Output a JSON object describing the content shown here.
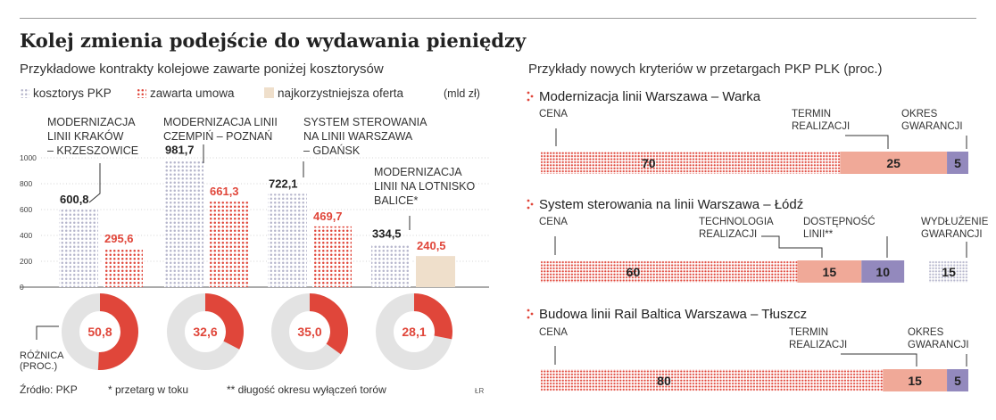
{
  "title": "Kolej zmienia podejście do wydawania pieniędzy",
  "left_subtitle": "Przykładowe kontrakty kolejowe zawarte poniżej kosztorysów",
  "right_subtitle": "Przykłady nowych kryteriów w przetargach PKP PLK (proc.)",
  "unit": "(mld zł)",
  "source": "Źródło: PKP",
  "footnote1": "* przetarg w toku",
  "footnote2": "** długość okresu wyłączeń torów",
  "credit": "ŁR",
  "diff_label": [
    "RÓŻNICA",
    "(PROC.)"
  ],
  "colors": {
    "pkp": "#b6b6cc",
    "contract": "#e0463a",
    "best": "#efdfcb",
    "red": "#e0463a",
    "salmon": "#f0a998",
    "purple": "#9389bd",
    "donut_bg": "#e3e3e3"
  },
  "chart_data": [
    {
      "type": "bar",
      "legend": [
        {
          "key": "pkp",
          "name": "kosztorys PKP"
        },
        {
          "key": "contract",
          "name": "zawarta umowa"
        },
        {
          "key": "best",
          "name": "najkorzystniejsza oferta"
        }
      ],
      "ylim": [
        0,
        1000
      ],
      "yticks": [
        "0",
        "200",
        "400",
        "600",
        "800",
        "1000"
      ],
      "ytick_values": [
        0,
        200,
        400,
        600,
        800,
        1000
      ],
      "groups": [
        {
          "label": [
            "MODERNIZACJA",
            "LINII KRAKÓW",
            "– KRZESZOWICE"
          ],
          "pkp": 600.8,
          "pkp_label": "600,8",
          "other": 295.6,
          "other_label": "295,6",
          "other_key": "contract"
        },
        {
          "label": [
            "MODERNIZACJA LINII",
            "CZEMPIŃ – POZNAŃ"
          ],
          "pkp": 981.7,
          "pkp_label": "981,7",
          "other": 661.3,
          "other_label": "661,3",
          "other_key": "contract"
        },
        {
          "label": [
            "SYSTEM STEROWANIA",
            "NA LINII WARSZAWA",
            "– GDAŃSK"
          ],
          "pkp": 722.1,
          "pkp_label": "722,1",
          "other": 469.7,
          "other_label": "469,7",
          "other_key": "contract"
        },
        {
          "label": [
            "MODERNIZACJA",
            "LINII NA LOTNISKO",
            "BALICE*"
          ],
          "pkp": 334.5,
          "pkp_label": "334,5",
          "other": 240.5,
          "other_label": "240,5",
          "other_key": "best"
        }
      ]
    },
    {
      "type": "pie",
      "values": [
        50.8,
        32.6,
        35.0,
        28.1
      ],
      "labels": [
        "50,8",
        "32,6",
        "35,0",
        "28,1"
      ]
    },
    {
      "type": "bar",
      "stacked": true,
      "orientation": "horizontal",
      "rows": [
        {
          "name": "Modernizacja linii Warszawa – Warka",
          "segments": [
            {
              "value": 70,
              "label": "70",
              "color": "red",
              "cat": [
                "CENA"
              ]
            },
            {
              "value": 25,
              "label": "25",
              "color": "salmon",
              "cat": [
                "TERMIN",
                "REALIZACJI"
              ]
            },
            {
              "value": 5,
              "label": "5",
              "color": "purple",
              "cat": [
                "OKRES",
                "GWARANCJI"
              ]
            }
          ]
        },
        {
          "name": "System sterowania na linii Warszawa – Łódź",
          "segments": [
            {
              "value": 60,
              "label": "60",
              "color": "red",
              "cat": [
                "CENA"
              ]
            },
            {
              "value": 15,
              "label": "15",
              "color": "salmon",
              "cat": [
                "TECHNOLOGIA",
                "REALIZACJI"
              ]
            },
            {
              "value": 10,
              "label": "10",
              "color": "purple",
              "cat": [
                "DOSTĘPNOŚĆ",
                "LINII**"
              ]
            },
            {
              "value": 15,
              "label": "15",
              "color": "grey",
              "cat": [
                "WYDŁUŻENIE",
                "GWARANCJI"
              ]
            }
          ]
        },
        {
          "name": "Budowa linii Rail Baltica Warszawa – Tłuszcz",
          "segments": [
            {
              "value": 80,
              "label": "80",
              "color": "red",
              "cat": [
                "CENA"
              ]
            },
            {
              "value": 15,
              "label": "15",
              "color": "salmon",
              "cat": [
                "TERMIN",
                "REALIZACJI"
              ]
            },
            {
              "value": 5,
              "label": "5",
              "color": "purple",
              "cat": [
                "OKRES",
                "GWARANCJI"
              ]
            }
          ]
        }
      ]
    }
  ]
}
